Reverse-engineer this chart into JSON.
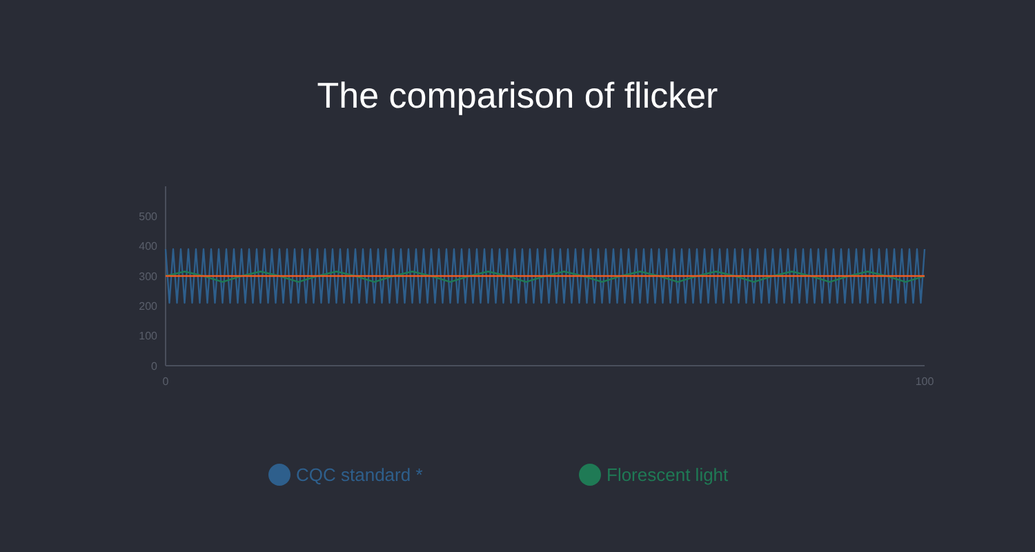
{
  "chart_data": {
    "type": "line",
    "title": "The comparison of flicker",
    "xlim": [
      0,
      100
    ],
    "xticks": [
      0,
      100
    ],
    "ylim": [
      0,
      600
    ],
    "yticks": [
      0,
      100,
      200,
      300,
      400,
      500
    ],
    "grid": false,
    "legend": "bottom",
    "marker": "none",
    "line_style": "solid",
    "series": [
      {
        "color": "#2e5f8c",
        "x": [
          0,
          0.5,
          1,
          1.5,
          2,
          2.5,
          3,
          3.5,
          4,
          4.5,
          5,
          5.5,
          6,
          6.5,
          7,
          7.5,
          8,
          8.5,
          9,
          9.5,
          10,
          10.5,
          11,
          11.5,
          12,
          12.5,
          13,
          13.5,
          14,
          14.5,
          15,
          15.5,
          16,
          16.5,
          17,
          17.5,
          18,
          18.5,
          19,
          19.5,
          20,
          20.5,
          21,
          21.5,
          22,
          22.5,
          23,
          23.5,
          24,
          24.5,
          25,
          25.5,
          26,
          26.5,
          27,
          27.5,
          28,
          28.5,
          29,
          29.5,
          30,
          30.5,
          31,
          31.5,
          32,
          32.5,
          33,
          33.5,
          34,
          34.5,
          35,
          35.5,
          36,
          36.5,
          37,
          37.5,
          38,
          38.5,
          39,
          39.5,
          40,
          40.5,
          41,
          41.5,
          42,
          42.5,
          43,
          43.5,
          44,
          44.5,
          45,
          45.5,
          46,
          46.5,
          47,
          47.5,
          48,
          48.5,
          49,
          49.5,
          50,
          50.5,
          51,
          51.5,
          52,
          52.5,
          53,
          53.5,
          54,
          54.5,
          55,
          55.5,
          56,
          56.5,
          57,
          57.5,
          58,
          58.5,
          59,
          59.5,
          60,
          60.5,
          61,
          61.5,
          62,
          62.5,
          63,
          63.5,
          64,
          64.5,
          65,
          65.5,
          66,
          66.5,
          67,
          67.5,
          68,
          68.5,
          69,
          69.5,
          70,
          70.5,
          71,
          71.5,
          72,
          72.5,
          73,
          73.5,
          74,
          74.5,
          75,
          75.5,
          76,
          76.5,
          77,
          77.5,
          78,
          78.5,
          79,
          79.5,
          80,
          80.5,
          81,
          81.5,
          82,
          82.5,
          83,
          83.5,
          84,
          84.5,
          85,
          85.5,
          86,
          86.5,
          87,
          87.5,
          88,
          88.5,
          89,
          89.5,
          90,
          90.5,
          91,
          91.5,
          92,
          92.5,
          93,
          93.5,
          94,
          94.5,
          95,
          95.5,
          96,
          96.5,
          97,
          97.5,
          98,
          98.5,
          99,
          99.5,
          100
        ],
        "values": [
          390,
          210,
          390,
          210,
          390,
          210,
          390,
          210,
          390,
          210,
          390,
          210,
          390,
          210,
          390,
          210,
          390,
          210,
          390,
          210,
          390,
          210,
          390,
          210,
          390,
          210,
          390,
          210,
          390,
          210,
          390,
          210,
          390,
          210,
          390,
          210,
          390,
          210,
          390,
          210,
          390,
          210,
          390,
          210,
          390,
          210,
          390,
          210,
          390,
          210,
          390,
          210,
          390,
          210,
          390,
          210,
          390,
          210,
          390,
          210,
          390,
          210,
          390,
          210,
          390,
          210,
          390,
          210,
          390,
          210,
          390,
          210,
          390,
          210,
          390,
          210,
          390,
          210,
          390,
          210,
          390,
          210,
          390,
          210,
          390,
          210,
          390,
          210,
          390,
          210,
          390,
          210,
          390,
          210,
          390,
          210,
          390,
          210,
          390,
          210,
          390,
          210,
          390,
          210,
          390,
          210,
          390,
          210,
          390,
          210,
          390,
          210,
          390,
          210,
          390,
          210,
          390,
          210,
          390,
          210,
          390,
          210,
          390,
          210,
          390,
          210,
          390,
          210,
          390,
          210,
          390,
          210,
          390,
          210,
          390,
          210,
          390,
          210,
          390,
          210,
          390,
          210,
          390,
          210,
          390,
          210,
          390,
          210,
          390,
          210,
          390,
          210,
          390,
          210,
          390,
          210,
          390,
          210,
          390,
          210,
          390,
          210,
          390,
          210,
          390,
          210,
          390,
          210,
          390,
          210,
          390,
          210,
          390,
          210,
          390,
          210,
          390,
          210,
          390,
          210,
          390,
          210,
          390,
          210,
          390,
          210,
          390,
          210,
          390,
          210,
          390,
          210,
          390,
          210,
          390,
          210,
          390,
          210,
          390,
          210,
          390
        ],
        "name": "CQC standard *"
      },
      {
        "color": "#1f7a55",
        "name": "Florescent light",
        "x": [
          0,
          2.5,
          5,
          7.5,
          10,
          12.5,
          15,
          17.5,
          20,
          22.5,
          25,
          27.5,
          30,
          32.5,
          35,
          37.5,
          40,
          42.5,
          45,
          47.5,
          50,
          52.5,
          55,
          57.5,
          60,
          62.5,
          65,
          67.5,
          70,
          72.5,
          75,
          77.5,
          80,
          82.5,
          85,
          87.5,
          90,
          92.5,
          95,
          97.5,
          100
        ],
        "values": [
          300,
          315,
          300,
          280,
          300,
          315,
          300,
          280,
          300,
          315,
          300,
          280,
          300,
          315,
          300,
          280,
          300,
          315,
          300,
          280,
          300,
          315,
          300,
          280,
          300,
          315,
          300,
          280,
          300,
          315,
          300,
          280,
          300,
          315,
          300,
          280,
          300,
          315,
          300,
          280,
          300
        ]
      },
      {
        "color": "#f05a22",
        "x": [
          0,
          5,
          10,
          15,
          20,
          25,
          30,
          35,
          40,
          45,
          50,
          55,
          60,
          65,
          70,
          75,
          80,
          85,
          90,
          95,
          100
        ],
        "values": [
          300,
          300,
          300,
          300,
          300,
          300,
          300,
          300,
          300,
          300,
          300,
          300,
          300,
          300,
          300,
          300,
          300,
          300,
          300,
          300,
          300
        ]
      }
    ]
  }
}
